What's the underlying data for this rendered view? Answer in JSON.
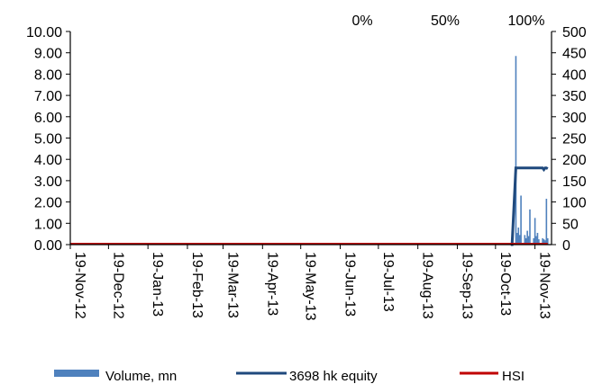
{
  "chart_data": {
    "type": "bar",
    "x_tick_labels": [
      "19-Nov-12",
      "19-Dec-12",
      "19-Jan-13",
      "19-Feb-13",
      "19-Mar-13",
      "19-Apr-13",
      "19-May-13",
      "19-Jun-13",
      "19-Jul-13",
      "19-Aug-13",
      "19-Sep-13",
      "19-Oct-13",
      "19-Nov-13"
    ],
    "xlim": [
      "2012-11-19",
      "2013-12-02"
    ],
    "left_axis": {
      "ylim": [
        0,
        10
      ],
      "ticks": [
        "0.00",
        "1.00",
        "2.00",
        "3.00",
        "4.00",
        "5.00",
        "6.00",
        "7.00",
        "8.00",
        "9.00",
        "10.00"
      ]
    },
    "right_axis": {
      "ylim": [
        0,
        500
      ],
      "ticks": [
        "0",
        "50",
        "100",
        "150",
        "200",
        "250",
        "300",
        "350",
        "400",
        "450",
        "500"
      ]
    },
    "top_labels": [
      "0%",
      "50%",
      "100%"
    ],
    "legend": {
      "position": "bottom",
      "entries": [
        "Volume, mn",
        "3698 hk equity",
        "HSI"
      ]
    },
    "colors": {
      "volume": "#4f81bd",
      "equity": "#1f497d",
      "hsi": "#c00000",
      "axis": "#000000"
    },
    "series": [
      {
        "name": "Volume, mn",
        "kind": "bar",
        "axis": "left",
        "x": [
          "2013-11-01",
          "2013-11-04",
          "2013-11-05",
          "2013-11-06",
          "2013-11-07",
          "2013-11-08",
          "2013-11-11",
          "2013-11-12",
          "2013-11-13",
          "2013-11-14",
          "2013-11-15",
          "2013-11-18",
          "2013-11-19",
          "2013-11-20",
          "2013-11-21",
          "2013-11-22",
          "2013-11-25",
          "2013-11-26",
          "2013-11-27",
          "2013-11-28",
          "2013-11-29"
        ],
        "values": [
          0.1,
          8.85,
          0.55,
          0.8,
          0.45,
          2.3,
          0.45,
          0.3,
          0.65,
          0.4,
          1.65,
          0.3,
          1.25,
          0.4,
          0.55,
          0.25,
          0.3,
          0.25,
          0.2,
          2.15,
          0.3
        ]
      },
      {
        "name": "3698 hk equity",
        "kind": "line",
        "axis": "right",
        "x": [
          "2013-10-31",
          "2013-11-01",
          "2013-11-04",
          "2013-11-25",
          "2013-11-26",
          "2013-11-27",
          "2013-11-28",
          "2013-11-29"
        ],
        "values": [
          0,
          0,
          180,
          180,
          176,
          180,
          180,
          178
        ]
      },
      {
        "name": "HSI",
        "kind": "line",
        "axis": "right",
        "x": [
          "2012-11-19",
          "2013-11-29"
        ],
        "values": [
          0,
          0
        ]
      }
    ]
  }
}
